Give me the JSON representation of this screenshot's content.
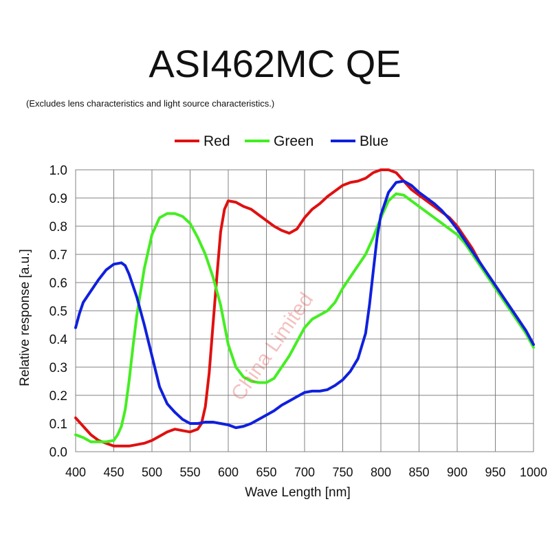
{
  "chart_data": {
    "type": "line",
    "title": "ASI462MC QE",
    "subtitle": "(Excludes lens characteristics and light source characteristics.)",
    "xlabel": "Wave Length [nm]",
    "ylabel": "Relative response [a.u.]",
    "xlim": [
      400,
      1000
    ],
    "ylim": [
      0.0,
      1.0
    ],
    "xticks": [
      "400",
      "450",
      "500",
      "550",
      "600",
      "650",
      "700",
      "750",
      "800",
      "850",
      "900",
      "950",
      "1000"
    ],
    "yticks": [
      "0.0",
      "0.1",
      "0.2",
      "0.3",
      "0.4",
      "0.5",
      "0.6",
      "0.7",
      "0.8",
      "0.9",
      "1.0"
    ],
    "grid": true,
    "legend": "top-center",
    "watermark": "China Limited",
    "colors": {
      "red": "#e01010",
      "green": "#44ee22",
      "blue": "#1020dd",
      "grid": "#808080"
    },
    "series": [
      {
        "name": "Red",
        "color": "#e01010",
        "x": [
          400,
          410,
          420,
          430,
          440,
          450,
          460,
          470,
          480,
          490,
          500,
          510,
          520,
          530,
          540,
          550,
          560,
          565,
          570,
          575,
          580,
          585,
          590,
          595,
          600,
          610,
          620,
          630,
          640,
          650,
          660,
          670,
          680,
          690,
          700,
          710,
          720,
          730,
          740,
          750,
          760,
          770,
          780,
          790,
          800,
          810,
          820,
          830,
          840,
          850,
          860,
          870,
          880,
          890,
          900,
          910,
          920,
          930,
          940,
          950,
          960,
          970,
          980,
          990,
          1000
        ],
        "values": [
          0.12,
          0.09,
          0.06,
          0.04,
          0.03,
          0.02,
          0.02,
          0.02,
          0.025,
          0.03,
          0.04,
          0.055,
          0.07,
          0.08,
          0.075,
          0.07,
          0.08,
          0.1,
          0.16,
          0.28,
          0.45,
          0.62,
          0.78,
          0.86,
          0.89,
          0.885,
          0.87,
          0.86,
          0.84,
          0.82,
          0.8,
          0.785,
          0.775,
          0.79,
          0.83,
          0.86,
          0.88,
          0.905,
          0.925,
          0.945,
          0.955,
          0.96,
          0.97,
          0.99,
          1.0,
          1.0,
          0.99,
          0.96,
          0.93,
          0.91,
          0.89,
          0.87,
          0.85,
          0.83,
          0.8,
          0.76,
          0.72,
          0.67,
          0.63,
          0.59,
          0.55,
          0.51,
          0.47,
          0.43,
          0.38
        ]
      },
      {
        "name": "Green",
        "color": "#44ee22",
        "x": [
          400,
          410,
          420,
          430,
          440,
          450,
          455,
          460,
          465,
          470,
          475,
          480,
          490,
          500,
          510,
          520,
          530,
          540,
          550,
          560,
          570,
          580,
          590,
          600,
          610,
          620,
          630,
          640,
          650,
          660,
          670,
          680,
          690,
          700,
          710,
          720,
          730,
          740,
          750,
          760,
          770,
          780,
          790,
          800,
          810,
          820,
          830,
          840,
          850,
          860,
          870,
          880,
          890,
          900,
          910,
          920,
          930,
          940,
          950,
          960,
          970,
          980,
          990,
          1000
        ],
        "values": [
          0.06,
          0.05,
          0.035,
          0.035,
          0.035,
          0.04,
          0.06,
          0.09,
          0.15,
          0.25,
          0.37,
          0.48,
          0.65,
          0.77,
          0.83,
          0.845,
          0.845,
          0.835,
          0.81,
          0.76,
          0.7,
          0.62,
          0.52,
          0.38,
          0.3,
          0.265,
          0.25,
          0.245,
          0.245,
          0.26,
          0.3,
          0.34,
          0.39,
          0.44,
          0.47,
          0.485,
          0.5,
          0.53,
          0.58,
          0.62,
          0.66,
          0.7,
          0.76,
          0.83,
          0.89,
          0.915,
          0.91,
          0.89,
          0.87,
          0.85,
          0.83,
          0.81,
          0.79,
          0.77,
          0.74,
          0.7,
          0.66,
          0.62,
          0.58,
          0.54,
          0.5,
          0.46,
          0.42,
          0.37
        ]
      },
      {
        "name": "Blue",
        "color": "#1020dd",
        "x": [
          400,
          405,
          410,
          420,
          430,
          440,
          450,
          460,
          465,
          470,
          480,
          490,
          500,
          510,
          520,
          530,
          540,
          550,
          560,
          570,
          580,
          590,
          600,
          610,
          620,
          630,
          640,
          650,
          660,
          670,
          680,
          690,
          700,
          710,
          720,
          730,
          740,
          750,
          760,
          770,
          780,
          785,
          790,
          795,
          800,
          810,
          820,
          830,
          840,
          850,
          860,
          870,
          880,
          890,
          900,
          910,
          920,
          930,
          940,
          950,
          960,
          970,
          980,
          990,
          1000
        ],
        "values": [
          0.44,
          0.49,
          0.53,
          0.57,
          0.61,
          0.645,
          0.665,
          0.67,
          0.66,
          0.63,
          0.55,
          0.45,
          0.34,
          0.23,
          0.17,
          0.14,
          0.115,
          0.1,
          0.1,
          0.105,
          0.105,
          0.1,
          0.095,
          0.085,
          0.09,
          0.1,
          0.115,
          0.13,
          0.145,
          0.165,
          0.18,
          0.195,
          0.21,
          0.215,
          0.215,
          0.22,
          0.235,
          0.255,
          0.285,
          0.33,
          0.42,
          0.52,
          0.64,
          0.76,
          0.84,
          0.92,
          0.955,
          0.96,
          0.945,
          0.92,
          0.9,
          0.88,
          0.855,
          0.825,
          0.79,
          0.75,
          0.71,
          0.67,
          0.63,
          0.59,
          0.55,
          0.51,
          0.47,
          0.43,
          0.38
        ]
      }
    ]
  }
}
